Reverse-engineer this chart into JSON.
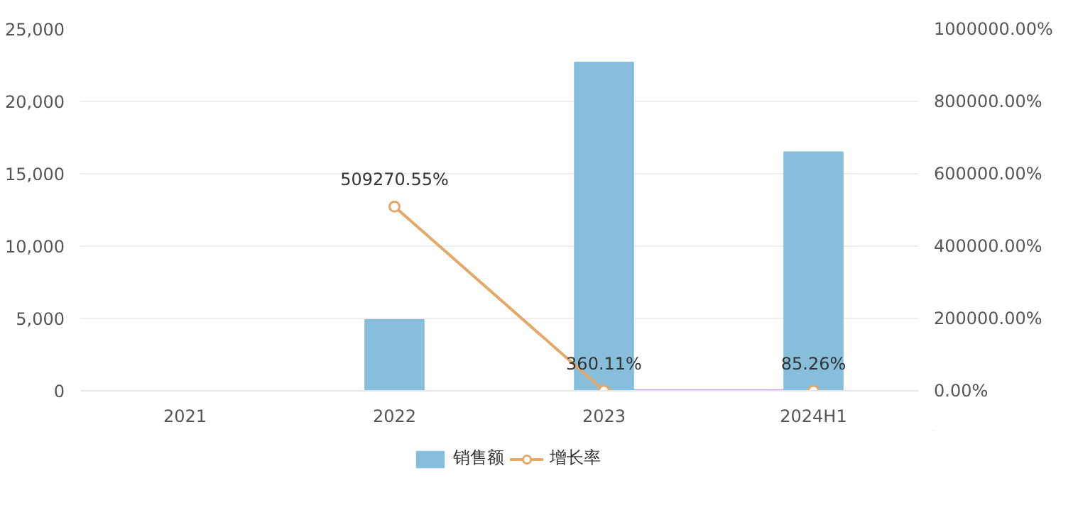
{
  "chart_data": {
    "type": "bar",
    "categories": [
      "2021",
      "2022",
      "2023",
      "2024H1"
    ],
    "series": [
      {
        "name": "销售额",
        "color": "#86bedb",
        "values": [
          0,
          4900,
          22700,
          16500
        ]
      },
      {
        "name": "增长率",
        "type": "line",
        "axis": "y2",
        "color": "#e3a96a",
        "marker": "circle",
        "values": [
          null,
          509270.55,
          360.11,
          85.26
        ],
        "value_labels": [
          null,
          "509270.55%",
          "360.11%",
          "85.26%"
        ]
      }
    ],
    "ylim": [
      0,
      25000
    ],
    "yticks": [
      {
        "value": 0,
        "label": "0"
      },
      {
        "value": 5000,
        "label": "5,000"
      },
      {
        "value": 10000,
        "label": "10,000"
      },
      {
        "value": 15000,
        "label": "15,000"
      },
      {
        "value": 20000,
        "label": "20,000"
      },
      {
        "value": 25000,
        "label": "25,000"
      }
    ],
    "y2lim": [
      0,
      1000000
    ],
    "y2ticks": [
      {
        "value": 0,
        "label": "0.00%"
      },
      {
        "value": 200000,
        "label": "200000.00%"
      },
      {
        "value": 400000,
        "label": "400000.00%"
      },
      {
        "value": 600000,
        "label": "600000.00%"
      },
      {
        "value": 800000,
        "label": "800000.00%"
      },
      {
        "value": 1000000,
        "label": "1000000.00%"
      }
    ],
    "grid": "y",
    "legend": "bottom"
  }
}
